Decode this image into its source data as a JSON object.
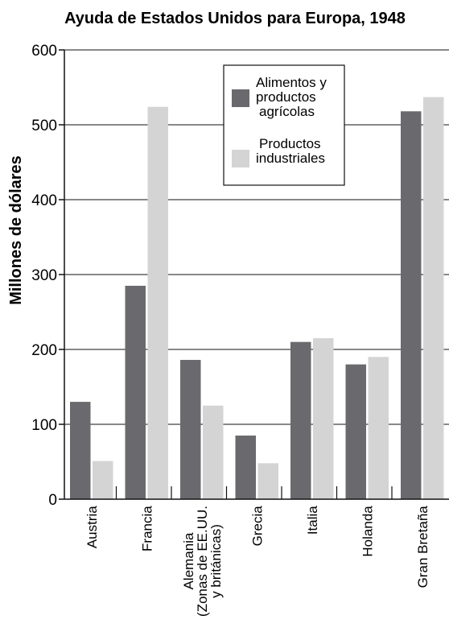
{
  "colors": {
    "food": "#6a6a6e",
    "industrial": "#d4d4d4",
    "axis": "#111111"
  },
  "chart_data": {
    "type": "bar",
    "title": "Ayuda de Estados Unidos para Europa, 1948",
    "xlabel": "",
    "ylabel": "Millones de dólares",
    "ylim": [
      0,
      600
    ],
    "yticks": [
      0,
      100,
      200,
      300,
      400,
      500,
      600
    ],
    "grid": true,
    "legend_position": "top-right",
    "categories": [
      [
        "Austria"
      ],
      [
        "Francia"
      ],
      [
        "Alemania",
        "(Zonas de EE.UU.",
        "y británicas)"
      ],
      [
        "Grecia"
      ],
      [
        "Italia"
      ],
      [
        "Holanda"
      ],
      [
        "Gran Bretaña"
      ]
    ],
    "series": [
      {
        "name": [
          "Alimentos y",
          "productos",
          "agrícolas"
        ],
        "color": "#6a6a6e",
        "values": [
          130,
          285,
          186,
          85,
          210,
          180,
          518
        ]
      },
      {
        "name": [
          "Productos",
          "industriales"
        ],
        "color": "#d4d4d4",
        "values": [
          51,
          524,
          125,
          48,
          215,
          190,
          537
        ]
      }
    ]
  }
}
